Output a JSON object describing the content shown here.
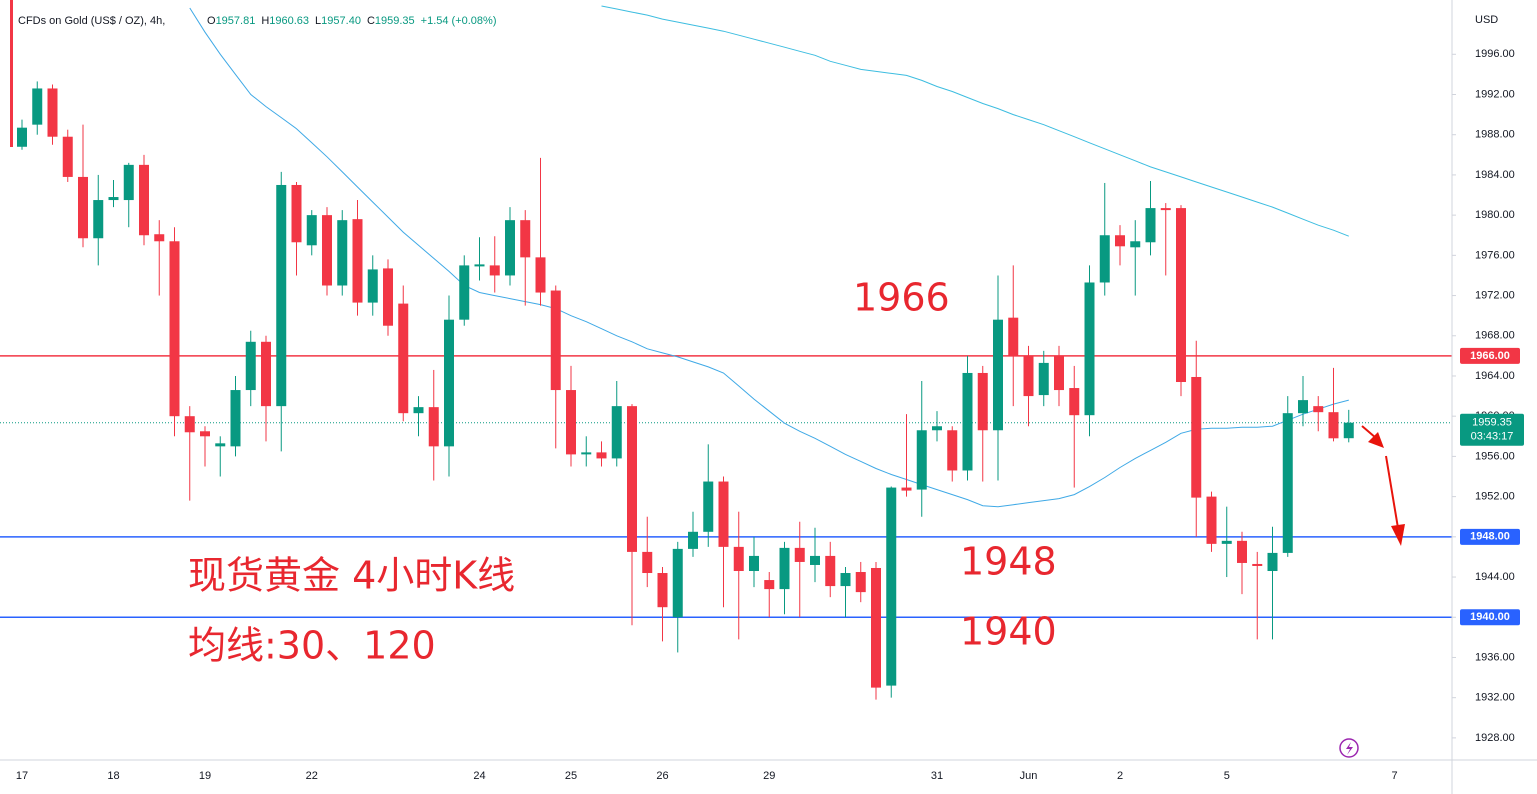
{
  "chart_data": {
    "type": "candlestick",
    "legend": {
      "symbol": "CFDs on Gold (US$ / OZ), 4h,",
      "ohlc": [
        {
          "key": "O",
          "value": "1957.81"
        },
        {
          "key": "H",
          "value": "1960.63"
        },
        {
          "key": "L",
          "value": "1957.40"
        },
        {
          "key": "C",
          "value": "1959.35"
        }
      ],
      "change": "+1.54 (+0.08%)"
    },
    "currency": "USD",
    "categories": [
      "17",
      null,
      null,
      null,
      null,
      null,
      "18",
      null,
      null,
      null,
      null,
      null,
      "19",
      null,
      null,
      null,
      null,
      null,
      null,
      "22",
      null,
      null,
      null,
      null,
      null,
      null,
      null,
      null,
      null,
      null,
      "24",
      null,
      null,
      null,
      null,
      null,
      "25",
      null,
      null,
      null,
      null,
      null,
      "26",
      null,
      null,
      null,
      null,
      null,
      null,
      "29",
      null,
      null,
      null,
      null,
      null,
      null,
      null,
      null,
      null,
      null,
      "31",
      null,
      null,
      null,
      null,
      null,
      "Jun",
      null,
      null,
      null,
      null,
      null,
      "2",
      null,
      null,
      null,
      null,
      null,
      null,
      "5",
      null,
      null,
      null,
      null,
      null,
      null,
      null,
      null,
      null,
      null,
      "7"
    ],
    "open": [
      1986.8,
      1989.0,
      1992.6,
      1987.8,
      1983.8,
      1977.7,
      1981.5,
      1981.5,
      1985.0,
      1978.1,
      1977.4,
      1960.0,
      1958.5,
      1957.0,
      1957.0,
      1962.6,
      1967.4,
      1961.0,
      1983.0,
      1977.0,
      1980.0,
      1973.0,
      1979.6,
      1971.3,
      1974.7,
      1971.2,
      1960.3,
      1960.9,
      1957.0,
      1969.6,
      1974.9,
      1975.0,
      1974.0,
      1979.5,
      1975.8,
      1972.5,
      1962.6,
      1956.2,
      1956.4,
      1955.8,
      1961.0,
      1946.5,
      1944.4,
      1940.0,
      1946.8,
      1948.5,
      1953.5,
      1947.0,
      1944.6,
      1943.7,
      1942.8,
      1946.9,
      1945.2,
      1946.1,
      1943.1,
      1944.5,
      1944.9,
      1933.2,
      1952.9,
      1952.7,
      1958.6,
      1958.6,
      1954.6,
      1964.3,
      1958.6,
      1969.8,
      1966.0,
      1962.1,
      1966.0,
      1962.8,
      1960.1,
      1973.3,
      1978.0,
      1976.8,
      1977.3,
      1980.7,
      1980.7,
      1963.9,
      1952.0,
      1947.3,
      1947.6,
      1945.3,
      1944.6,
      1946.4,
      1960.3,
      1961.0,
      1960.4,
      1957.81,
      null,
      null,
      null
    ],
    "high": [
      1989.5,
      1993.3,
      1993.0,
      1988.5,
      1989.0,
      1984.0,
      1983.5,
      1985.2,
      1986.0,
      1979.5,
      1978.8,
      1961.0,
      1959.0,
      1958.0,
      1964.0,
      1968.5,
      1968.0,
      1984.3,
      1983.3,
      1980.5,
      1980.8,
      1980.5,
      1981.5,
      1976.0,
      1975.6,
      1973.0,
      1962.0,
      1964.6,
      1972.0,
      1976.0,
      1977.8,
      1977.9,
      1980.8,
      1980.5,
      1985.7,
      1973.0,
      1965.0,
      1958.0,
      1957.5,
      1963.5,
      1961.2,
      1950.0,
      1945.0,
      1947.5,
      1950.5,
      1957.2,
      1954.0,
      1950.5,
      1948.0,
      1944.5,
      1947.5,
      1949.5,
      1948.9,
      1947.5,
      1945.0,
      1945.5,
      1945.5,
      1953.0,
      1960.2,
      1963.5,
      1960.5,
      1959.0,
      1966.0,
      1965.0,
      1974.0,
      1975.0,
      1967.0,
      1966.5,
      1967.0,
      1965.0,
      1975.0,
      1983.2,
      1979.0,
      1979.5,
      1983.4,
      1981.2,
      1981.0,
      1967.5,
      1952.5,
      1951.0,
      1948.5,
      1946.5,
      1949.0,
      1962.0,
      1964.0,
      1962.0,
      1964.8,
      1960.63,
      null,
      null,
      null
    ],
    "low": [
      1986.5,
      1988.0,
      1987.0,
      1983.3,
      1976.8,
      1975.0,
      1980.8,
      1978.8,
      1977.0,
      1972.0,
      1958.0,
      1951.6,
      1955.0,
      1954.0,
      1956.0,
      1961.0,
      1957.5,
      1956.5,
      1974.0,
      1976.0,
      1972.0,
      1972.0,
      1970.0,
      1970.0,
      1968.0,
      1959.5,
      1958.0,
      1953.6,
      1954.0,
      1969.0,
      1973.5,
      1972.3,
      1973.0,
      1971.0,
      1971.0,
      1956.8,
      1955.0,
      1955.0,
      1955.0,
      1955.0,
      1939.2,
      1943.0,
      1937.6,
      1936.5,
      1946.0,
      1947.0,
      1941.0,
      1937.8,
      1943.0,
      1940.0,
      1940.3,
      1940.0,
      1943.5,
      1942.0,
      1940.0,
      1941.5,
      1931.8,
      1932.0,
      1952.0,
      1950.0,
      1957.5,
      1953.5,
      1953.6,
      1953.5,
      1953.6,
      1961.0,
      1959.0,
      1961.0,
      1961.0,
      1952.9,
      1958.0,
      1972.0,
      1975.0,
      1972.0,
      1976.0,
      1974.0,
      1962.0,
      1948.0,
      1946.5,
      1944.0,
      1942.3,
      1937.8,
      1937.8,
      1946.0,
      1959.0,
      1958.5,
      1957.5,
      1957.4,
      null,
      null,
      null
    ],
    "close": [
      1988.7,
      1992.6,
      1987.8,
      1983.8,
      1977.7,
      1981.5,
      1981.8,
      1985.0,
      1978.0,
      1977.4,
      1960.0,
      1958.4,
      1958.0,
      1957.3,
      1962.6,
      1967.4,
      1961.0,
      1983.0,
      1977.3,
      1980.0,
      1973.0,
      1979.5,
      1971.3,
      1974.6,
      1969.0,
      1960.3,
      1960.9,
      1957.0,
      1969.6,
      1975.0,
      1975.1,
      1974.0,
      1979.5,
      1975.8,
      1972.3,
      1962.6,
      1956.2,
      1956.4,
      1955.8,
      1961.0,
      1946.5,
      1944.4,
      1941.0,
      1946.8,
      1948.5,
      1953.5,
      1947.0,
      1944.6,
      1946.1,
      1942.8,
      1946.9,
      1945.5,
      1946.1,
      1943.1,
      1944.4,
      1942.5,
      1933.0,
      1952.9,
      1952.6,
      1958.6,
      1959.0,
      1954.6,
      1964.3,
      1958.6,
      1969.6,
      1966.0,
      1962.0,
      1965.3,
      1962.6,
      1960.1,
      1973.3,
      1978.0,
      1976.9,
      1977.4,
      1980.7,
      1980.5,
      1963.4,
      1951.9,
      1947.3,
      1947.6,
      1945.4,
      1945.1,
      1946.4,
      1960.3,
      1961.6,
      1960.4,
      1957.8,
      1959.35,
      null,
      null,
      null
    ],
    "up_color": "#089981",
    "down_color": "#f23645",
    "ma": [
      {
        "color": "#3fa9e6",
        "values": [
          null,
          null,
          null,
          null,
          null,
          null,
          null,
          null,
          null,
          null,
          null,
          2000.6,
          1998.2,
          1996.0,
          1994.0,
          1992.0,
          1990.8,
          1989.7,
          1988.6,
          1987.2,
          1985.8,
          1984.3,
          1982.8,
          1981.3,
          1979.8,
          1978.3,
          1977.0,
          1975.7,
          1974.4,
          1973.0,
          1972.3,
          1972.0,
          1971.7,
          1971.4,
          1971.1,
          1970.7,
          1970.0,
          1969.4,
          1968.7,
          1968.0,
          1967.4,
          1966.7,
          1966.3,
          1965.9,
          1965.4,
          1964.9,
          1964.3,
          1963.0,
          1961.7,
          1960.5,
          1959.3,
          1958.5,
          1957.8,
          1957.0,
          1956.2,
          1955.5,
          1954.8,
          1954.2,
          1953.7,
          1953.2,
          1952.7,
          1952.2,
          1951.7,
          1951.1,
          1951.0,
          1951.2,
          1951.4,
          1951.6,
          1951.8,
          1952.2,
          1953.0,
          1953.9,
          1954.9,
          1955.8,
          1956.6,
          1957.4,
          1958.3,
          1958.7,
          1958.8,
          1958.8,
          1958.9,
          1958.9,
          1959.0,
          1959.6,
          1960.2,
          1960.7,
          1961.2,
          1961.6,
          null,
          null,
          null
        ]
      },
      {
        "color": "#3dbde0",
        "values": [
          null,
          null,
          null,
          null,
          null,
          null,
          null,
          null,
          null,
          null,
          null,
          null,
          null,
          null,
          null,
          null,
          null,
          null,
          null,
          null,
          null,
          null,
          null,
          null,
          null,
          null,
          null,
          null,
          null,
          null,
          null,
          null,
          null,
          null,
          null,
          null,
          null,
          null,
          2000.8,
          2000.5,
          2000.2,
          1999.9,
          1999.5,
          1999.2,
          1998.9,
          1998.6,
          1998.3,
          1997.9,
          1997.5,
          1997.1,
          1996.7,
          1996.3,
          1995.9,
          1995.3,
          1994.9,
          1994.5,
          1994.3,
          1994.1,
          1993.9,
          1993.4,
          1992.8,
          1992.3,
          1991.7,
          1991.1,
          1990.6,
          1990.0,
          1989.5,
          1989.0,
          1988.4,
          1987.8,
          1987.2,
          1986.6,
          1986.0,
          1985.4,
          1984.8,
          1984.3,
          1983.8,
          1983.3,
          1982.8,
          1982.3,
          1981.8,
          1981.3,
          1980.8,
          1980.2,
          1979.6,
          1979.0,
          1978.5,
          1977.9,
          null,
          null,
          null
        ]
      }
    ],
    "ylim": [
      1925.8,
      2001.4
    ],
    "yticks": [
      {
        "value": 1928,
        "label": "1928.00"
      },
      {
        "value": 1932,
        "label": "1932.00"
      },
      {
        "value": 1936,
        "label": "1936.00"
      },
      {
        "value": 1940,
        "label": "1940.00"
      },
      {
        "value": 1944,
        "label": "1944.00"
      },
      {
        "value": 1948,
        "label": "1948.00"
      },
      {
        "value": 1952,
        "label": "1952.00"
      },
      {
        "value": 1956,
        "label": "1956.00"
      },
      {
        "value": 1960,
        "label": "1960.00"
      },
      {
        "value": 1964,
        "label": "1964.00"
      },
      {
        "value": 1968,
        "label": "1968.00"
      },
      {
        "value": 1972,
        "label": "1972.00"
      },
      {
        "value": 1976,
        "label": "1976.00"
      },
      {
        "value": 1980,
        "label": "1980.00"
      },
      {
        "value": 1984,
        "label": "1984.00"
      },
      {
        "value": 1988,
        "label": "1988.00"
      },
      {
        "value": 1992,
        "label": "1992.00"
      },
      {
        "value": 1996,
        "label": "1996.00"
      }
    ],
    "price_lines": [
      {
        "value": 1966,
        "label": "1966.00",
        "color": "#f23645"
      },
      {
        "value": 1948,
        "label": "1948.00",
        "color": "#2962ff"
      },
      {
        "value": 1940,
        "label": "1940.00",
        "color": "#2962ff"
      }
    ],
    "last_price": {
      "value": 1959.35,
      "label": "1959.35",
      "countdown": "03:43:17",
      "color": "#089981"
    },
    "grid": false,
    "annotations": [
      "1966",
      "1948",
      "1940",
      "现货黄金 4小时K线",
      "均线:30、120"
    ]
  }
}
